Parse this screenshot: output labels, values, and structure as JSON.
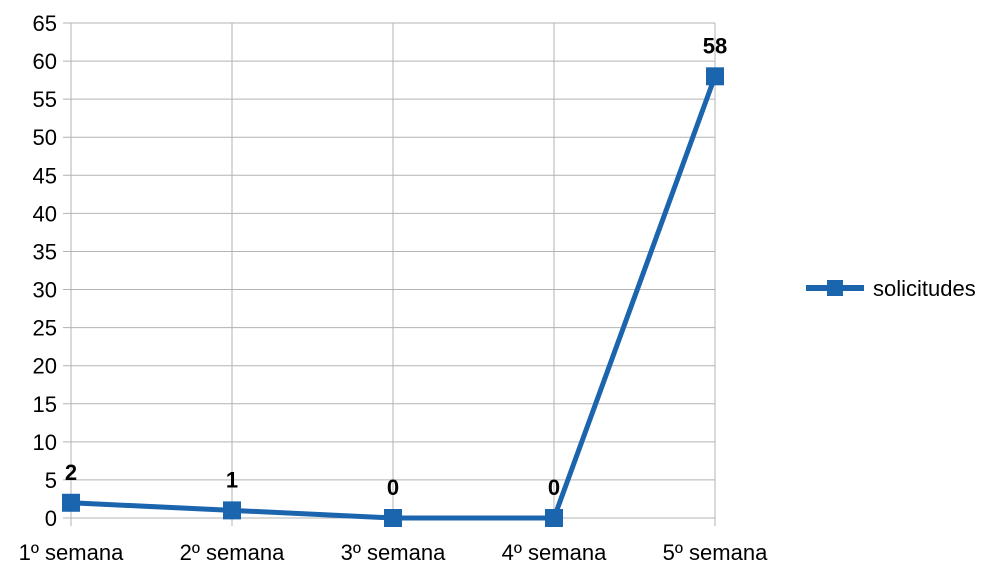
{
  "chart_data": {
    "type": "line",
    "categories": [
      "1º semana",
      "2º semana",
      "3º semana",
      "4º semana",
      "5º semana"
    ],
    "series": [
      {
        "name": "solicitudes",
        "values": [
          2,
          1,
          0,
          0,
          58
        ],
        "color": "#1b64ae"
      }
    ],
    "ylim": [
      0,
      65
    ],
    "ytick_step": 5,
    "grid": true,
    "legend_position": "right",
    "data_labels": true
  }
}
